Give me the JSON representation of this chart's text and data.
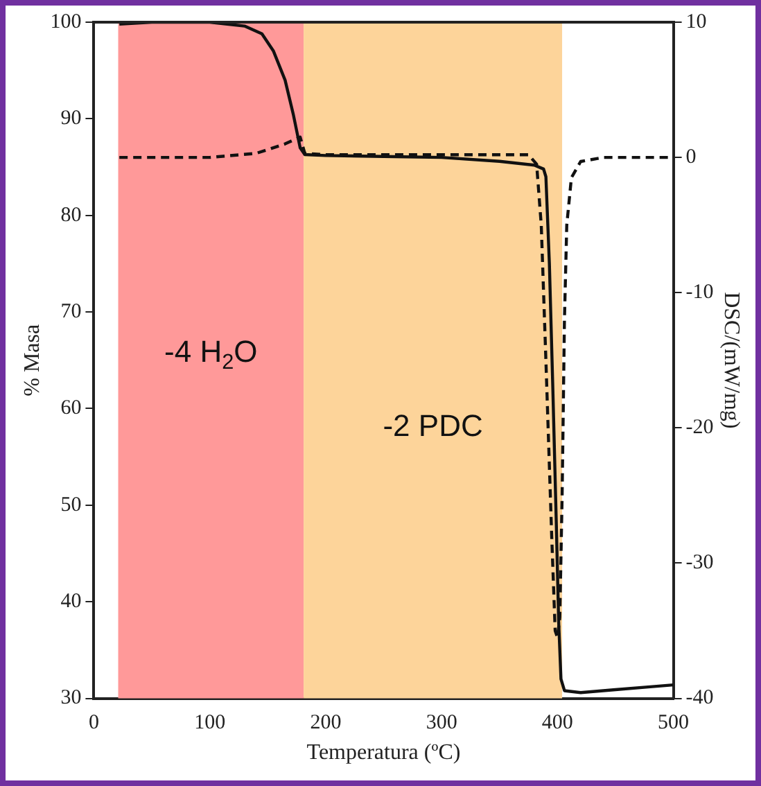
{
  "chart_data": {
    "type": "line",
    "xlabel": "Temperatura (ºC)",
    "ylabel": "% Masa",
    "y2label": "DSC/(mW/mg)",
    "xlim": [
      0,
      500
    ],
    "xticks": [
      0,
      100,
      200,
      300,
      400,
      500
    ],
    "ylim": [
      30,
      100
    ],
    "yticks": [
      30,
      40,
      50,
      60,
      70,
      80,
      90,
      100
    ],
    "y2lim": [
      -40,
      10
    ],
    "y2ticks": [
      -40,
      -30,
      -20,
      -10,
      0,
      10
    ],
    "grid": false,
    "legend": false,
    "marker": "none",
    "bands": [
      {
        "axis": "x",
        "from": 21,
        "to": 181,
        "label": "-4 H$_{2}$O",
        "color": "#ff9999"
      },
      {
        "axis": "x",
        "from": 181,
        "to": 404,
        "label": "-2 PDC",
        "color": "#fdd49a"
      }
    ],
    "series": [
      {
        "color": "#111111",
        "line_style": "solid",
        "x": [
          22,
          50,
          100,
          130,
          145,
          155,
          165,
          172,
          178,
          182,
          200,
          250,
          300,
          350,
          380,
          388,
          390,
          393,
          396,
          399,
          401,
          403,
          406,
          420,
          450,
          480,
          500
        ],
        "values": [
          99.8,
          100,
          100,
          99.6,
          98.8,
          97,
          94,
          90.5,
          87,
          86.3,
          86.2,
          86.1,
          86,
          85.6,
          85.2,
          84.8,
          84,
          75,
          62,
          48,
          38,
          32,
          30.8,
          30.6,
          30.9,
          31.2,
          31.4
        ]
      },
      {
        "color": "#111111",
        "line_style": "dashed",
        "axis": "y2",
        "x": [
          22,
          100,
          140,
          165,
          178,
          182,
          200,
          300,
          375,
          382,
          386,
          390,
          395,
          398,
          400,
          402,
          404,
          406,
          408,
          412,
          420,
          440,
          500
        ],
        "values": [
          0,
          0,
          0.3,
          1,
          1.5,
          0.3,
          0.2,
          0.2,
          0.2,
          -0.5,
          -5,
          -15,
          -28,
          -35,
          -35.5,
          -34,
          -25,
          -12,
          -5,
          -1.5,
          -0.3,
          0,
          0
        ]
      }
    ]
  }
}
